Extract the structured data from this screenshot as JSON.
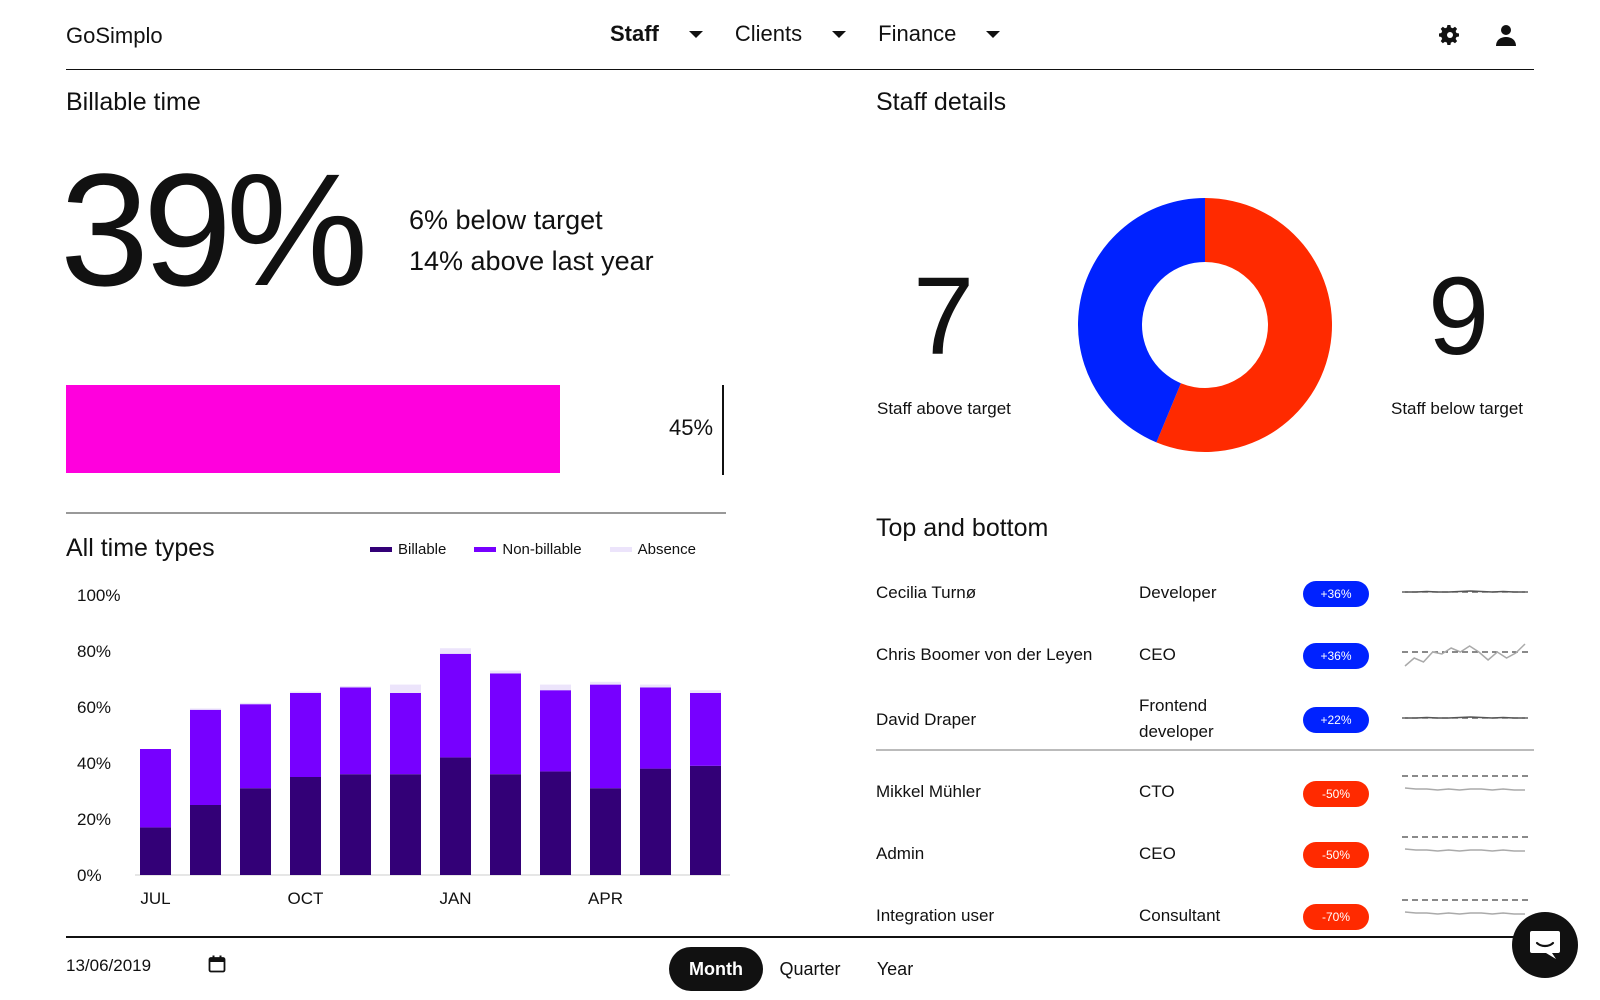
{
  "header": {
    "brand": "GoSimplo",
    "nav": [
      {
        "label": "Staff",
        "active": true
      },
      {
        "label": "Clients",
        "active": false
      },
      {
        "label": "Finance",
        "active": false
      }
    ],
    "settings_icon": "gear-icon",
    "user_icon": "user-icon"
  },
  "billable": {
    "title": "Billable time",
    "value": "39%",
    "below_target": "6% below target",
    "above_last_year": "14% above last year",
    "bar_fraction": 0.39,
    "target_label": "45%",
    "bar_color": "#ff00dd"
  },
  "time_types": {
    "title": "All time types",
    "legend": [
      {
        "label": "Billable",
        "color": "#330077"
      },
      {
        "label": "Non-billable",
        "color": "#7700ff"
      },
      {
        "label": "Absence",
        "color": "#ece4fb"
      }
    ]
  },
  "chart_data": {
    "type": "bar",
    "stacked": true,
    "x_tick_labels": [
      "JUL",
      "OCT",
      "JAN",
      "APR"
    ],
    "y_tick_labels": [
      "100%",
      "80%",
      "60%",
      "40%",
      "20%",
      "0%"
    ],
    "ylim": [
      0,
      100
    ],
    "series": [
      {
        "name": "Billable",
        "color": "#330077",
        "values": [
          17,
          25,
          31,
          35,
          36,
          36,
          42,
          36,
          37,
          31,
          38,
          39
        ]
      },
      {
        "name": "Non-billable",
        "color": "#7700ff",
        "values": [
          28,
          34,
          30,
          30,
          31,
          29,
          37,
          36,
          29,
          37,
          29,
          26
        ]
      },
      {
        "name": "Absence",
        "color": "#ece4fb",
        "values": [
          0,
          0.5,
          0.5,
          0.5,
          0.5,
          3,
          2,
          1,
          2,
          1,
          1,
          1
        ]
      }
    ],
    "tick_positions": [
      0,
      3,
      6,
      9
    ]
  },
  "staff": {
    "title": "Staff details",
    "above_count": "7",
    "above_label": "Staff above target",
    "below_count": "9",
    "below_label": "Staff below target",
    "donut": {
      "above_fraction": 0.4375,
      "above_color": "#0022ff",
      "below_color": "#ff2a00"
    }
  },
  "top_bottom": {
    "title": "Top and bottom",
    "rows": [
      {
        "name": "Cecilia Turnø",
        "role": "Developer",
        "change": "+36%",
        "positive": true,
        "spark": "flat"
      },
      {
        "name": "Chris Boomer von der Leyen",
        "role": "CEO",
        "change": "+36%",
        "positive": true,
        "spark": "zigzag"
      },
      {
        "name": "David Draper",
        "role": "Frontend developer",
        "change": "+22%",
        "positive": true,
        "spark": "flat"
      },
      {
        "name": "Mikkel Mühler",
        "role": "CTO",
        "change": "-50%",
        "positive": false,
        "spark": "below"
      },
      {
        "name": "Admin",
        "role": "CEO",
        "change": "-50%",
        "positive": false,
        "spark": "below"
      },
      {
        "name": "Integration user",
        "role": "Consultant",
        "change": "-70%",
        "positive": false,
        "spark": "below"
      }
    ],
    "positive_color": "#0022ff",
    "negative_color": "#ff2a00"
  },
  "footer": {
    "date": "13/06/2019",
    "calendar_icon": "calendar-icon",
    "periods": [
      {
        "label": "Month",
        "active": true
      },
      {
        "label": "Quarter",
        "active": false
      },
      {
        "label": "Year",
        "active": false
      }
    ],
    "chat_icon": "chat-icon"
  }
}
